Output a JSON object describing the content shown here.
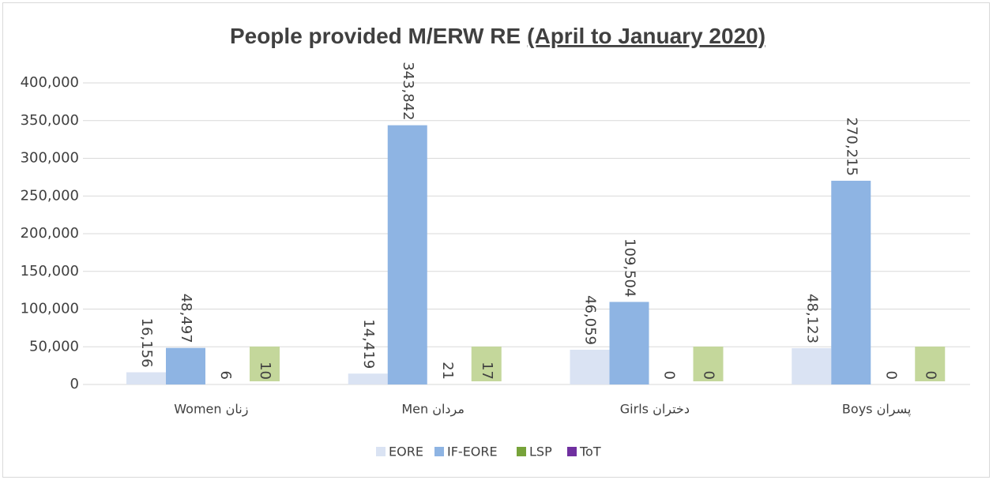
{
  "chart_data": {
    "type": "bar",
    "title": "People provided M/ERW RE",
    "subtitle": "(April to January 2020)",
    "categories": [
      "Women زنان",
      "Men مردان",
      "Girls دختران",
      "Boys پسران"
    ],
    "series": [
      {
        "name": "EORE",
        "color": "#dae3f3",
        "values": [
          16156,
          14419,
          46059,
          48123
        ],
        "value_labels": [
          "16,156",
          "14,419",
          "46,059",
          "48,123"
        ]
      },
      {
        "name": "IF-EORE",
        "color": "#8eb4e3",
        "values": [
          48497,
          343842,
          109504,
          270215
        ],
        "value_labels": [
          "48,497",
          "343,842",
          "109,504",
          "270,215"
        ]
      },
      {
        "name": "LSP",
        "color": "#77a33a",
        "values": [
          6,
          21,
          0,
          0
        ]
      },
      {
        "name": "ToT",
        "color": "#7030a0",
        "values": [
          10,
          17,
          0,
          0
        ],
        "label_box": "#c4d79b"
      }
    ],
    "ylim": [
      0,
      400000
    ],
    "yticks": [
      0,
      {
        "value": 50000,
        "label": "50,000"
      },
      {
        "value": 100000,
        "label": "100,000"
      },
      {
        "value": 150000,
        "label": "150,000"
      },
      {
        "value": 200000,
        "label": "200,000"
      },
      {
        "value": 250000,
        "label": "250,000"
      },
      {
        "value": 300000,
        "label": "300,000"
      },
      {
        "value": 350000,
        "label": "350,000"
      },
      {
        "value": 400000,
        "label": "400,000"
      }
    ],
    "grid": true,
    "legend": "bottom"
  }
}
